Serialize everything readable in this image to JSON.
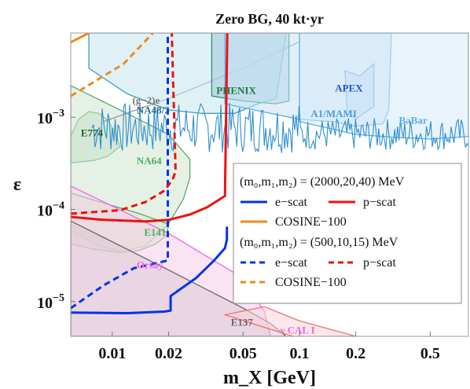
{
  "chart_data": {
    "type": "exclusion-plot",
    "title": "Zero BG, 40 kt·yr",
    "xlabel": "m_X [GeV]",
    "ylabel": "ε",
    "x_scale": "log",
    "y_scale": "log",
    "xlim": [
      0.006,
      0.8
    ],
    "ylim": [
      4.2e-06,
      0.0082
    ],
    "x_ticks": [
      {
        "value": 0.01,
        "label": "0.01"
      },
      {
        "value": 0.02,
        "label": "0.02"
      },
      {
        "value": 0.05,
        "label": "0.05"
      },
      {
        "value": 0.1,
        "label": "0.1"
      },
      {
        "value": 0.2,
        "label": "0.2"
      },
      {
        "value": 0.5,
        "label": "0.5"
      }
    ],
    "y_ticks": [
      {
        "value": 1e-05,
        "base": "10",
        "exp": "−5"
      },
      {
        "value": 0.0001,
        "base": "10",
        "exp": "−4"
      },
      {
        "value": 0.001,
        "base": "10",
        "exp": "−3"
      }
    ],
    "constraints": [
      {
        "name": "E774",
        "color": "#5aa873",
        "fill": "#b9dcc2",
        "points": [
          [
            0.006,
            0.00062
          ],
          [
            0.0066,
            0.00095
          ],
          [
            0.0075,
            0.00115
          ],
          [
            0.0085,
            0.0011
          ],
          [
            0.0095,
            0.00092
          ],
          [
            0.0105,
            0.00065
          ],
          [
            0.011,
            0.00048
          ],
          [
            0.0095,
            0.00038
          ],
          [
            0.008,
            0.00034
          ],
          [
            0.006,
            0.00032
          ]
        ]
      },
      {
        "name": "NA64",
        "color": "#5aa873",
        "fill": "#cfe6cf",
        "points": [
          [
            0.006,
            0.0022
          ],
          [
            0.012,
            0.0011
          ],
          [
            0.02,
            0.00065
          ],
          [
            0.026,
            0.00035
          ],
          [
            0.026,
            0.00022
          ],
          [
            0.024,
            0.00013
          ],
          [
            0.02,
            7e-05
          ],
          [
            0.015,
            4e-05
          ],
          [
            0.011,
            3.5e-05
          ],
          [
            0.008,
            4.2e-05
          ],
          [
            0.006,
            6e-05
          ]
        ]
      },
      {
        "name": "E141",
        "color": "#5aa873",
        "fill": "#dde8c8",
        "points": [
          [
            0.006,
            0.00015
          ],
          [
            0.01,
            0.00011
          ],
          [
            0.014,
            9e-05
          ],
          [
            0.017,
            7.8e-05
          ],
          [
            0.019,
            7.2e-05
          ],
          [
            0.02,
            6.8e-05
          ],
          [
            0.0195,
            5.2e-05
          ],
          [
            0.017,
            4.2e-05
          ],
          [
            0.014,
            3.6e-05
          ],
          [
            0.011,
            3.4e-05
          ],
          [
            0.008,
            3.7e-05
          ],
          [
            0.006,
            4.2e-05
          ]
        ]
      },
      {
        "name": "Orsay",
        "color": "#f066e8",
        "fill": "#f6cdea",
        "points": [
          [
            0.006,
            0.00018
          ],
          [
            0.02,
            5.5e-05
          ],
          [
            0.05,
            1.8e-05
          ],
          [
            0.065,
            7.8e-06
          ],
          [
            0.07,
            4.2e-06
          ],
          [
            0.006,
            4.2e-06
          ]
        ]
      },
      {
        "name": "E137",
        "color": "#666666",
        "fill": "#dcc9d3",
        "points": [
          [
            0.006,
            7.5e-05
          ],
          [
            0.02,
            2.2e-05
          ],
          [
            0.05,
            8.5e-06
          ],
          [
            0.07,
            5.8e-06
          ],
          [
            0.085,
            4.2e-06
          ],
          [
            0.006,
            4.2e-06
          ]
        ]
      },
      {
        "name": "ν CAL I",
        "color": "#f07070",
        "fill": "#f9d6da",
        "points": [
          [
            0.04,
            7.2e-06
          ],
          [
            0.08,
            4.6e-06
          ],
          [
            0.1,
            4e-06
          ],
          [
            0.13,
            4.2e-06
          ],
          [
            0.2,
            4.2e-06
          ],
          [
            0.1,
            6.2e-06
          ],
          [
            0.065,
            8.8e-06
          ]
        ]
      },
      {
        "name": "(g−2)e",
        "color": "#999999",
        "fill": "none",
        "points": [
          [
            0.009,
            0.0009
          ],
          [
            0.02,
            0.0016
          ],
          [
            0.05,
            0.0034
          ],
          [
            0.1,
            0.0066
          ]
        ]
      },
      {
        "name": "NA48/2",
        "color": "#3aa0b8",
        "fill": "#c6e6ee",
        "points": [
          [
            0.0075,
            0.0082
          ],
          [
            0.0075,
            0.0034
          ],
          [
            0.012,
            0.0018
          ],
          [
            0.02,
            0.0012
          ],
          [
            0.03,
            0.0011
          ],
          [
            0.045,
            0.0011
          ],
          [
            0.06,
            0.0014
          ],
          [
            0.075,
            0.0016
          ],
          [
            0.085,
            0.0082
          ]
        ]
      },
      {
        "name": "PHENIX",
        "color": "#2e8b7a",
        "fill": "#9fc9d9",
        "points": [
          [
            0.034,
            0.0082
          ],
          [
            0.034,
            0.0017
          ],
          [
            0.05,
            0.0015
          ],
          [
            0.075,
            0.0014
          ],
          [
            0.088,
            0.0015
          ],
          [
            0.088,
            0.0082
          ]
        ]
      },
      {
        "name": "APEX",
        "color": "#2255cc",
        "fill": "#a8bff0",
        "points": [
          [
            0.175,
            0.0032
          ],
          [
            0.18,
            0.0012
          ],
          [
            0.2,
            0.00095
          ],
          [
            0.22,
            0.0011
          ],
          [
            0.25,
            0.0013
          ],
          [
            0.25,
            0.0038
          ],
          [
            0.21,
            0.0028
          ]
        ]
      },
      {
        "name": "A1/MAMI",
        "color": "#5ab0e6",
        "fill": "#c9e2f6",
        "points": [
          [
            0.04,
            0.0082
          ],
          [
            0.04,
            0.0014
          ],
          [
            0.07,
            0.0011
          ],
          [
            0.1,
            0.00095
          ],
          [
            0.15,
            0.0009
          ],
          [
            0.2,
            0.0008
          ],
          [
            0.28,
            0.00085
          ],
          [
            0.3,
            0.0012
          ],
          [
            0.31,
            0.0082
          ]
        ]
      },
      {
        "name": "BaBar",
        "color": "#5ab0e6",
        "fill": "#d6e9f8",
        "points": [
          [
            0.1,
            0.0082
          ],
          [
            0.1,
            0.0009
          ],
          [
            0.2,
            0.00065
          ],
          [
            0.35,
            0.0006
          ],
          [
            0.5,
            0.00058
          ],
          [
            0.65,
            0.0006
          ],
          [
            0.8,
            0.00062
          ],
          [
            0.8,
            0.0082
          ]
        ]
      },
      {
        "name": "COSINE-100 (upper left)",
        "color": "#f08a1e",
        "fill": "none",
        "points": [
          [
            0.006,
            0.0065
          ],
          [
            0.0075,
            0.0082
          ]
        ]
      }
    ],
    "series": [
      {
        "name": "e−scat",
        "group": "(m₀,m₁,m₂) = (2000,20,40) MeV",
        "color": "#0033ee",
        "style": "solid",
        "points": [
          [
            0.006,
            7.6e-06
          ],
          [
            0.012,
            7.5e-06
          ],
          [
            0.019,
            7.8e-06
          ],
          [
            0.0205,
            8e-06
          ],
          [
            0.0205,
            1.15e-05
          ],
          [
            0.028,
            1.8e-05
          ],
          [
            0.035,
            2.8e-05
          ],
          [
            0.04,
            3.8e-05
          ],
          [
            0.041,
            4.7e-05
          ],
          [
            0.041,
            6.5e-05
          ]
        ]
      },
      {
        "name": "p−scat",
        "group": "(m₀,m₁,m₂) = (2000,20,40) MeV",
        "color": "#ee1111",
        "style": "solid",
        "points": [
          [
            0.006,
            8.3e-05
          ],
          [
            0.009,
            7.7e-05
          ],
          [
            0.015,
            7.4e-05
          ],
          [
            0.02,
            7.7e-05
          ],
          [
            0.026,
            8.8e-05
          ],
          [
            0.032,
            0.000105
          ],
          [
            0.04,
            0.00014
          ],
          [
            0.0412,
            0.0082
          ]
        ]
      },
      {
        "name": "COSINE−100",
        "group": "(m₀,m₁,m₂) = (2000,20,40) MeV",
        "color": "#f08a1e",
        "style": "solid",
        "points": [
          [
            0.006,
            0.0065
          ],
          [
            0.0075,
            0.0082
          ]
        ]
      },
      {
        "name": "e−scat",
        "group": "(m₀,m₁,m₂) = (500,10,15) MeV",
        "color": "#0033ee",
        "style": "dashed",
        "points": [
          [
            0.006,
            8.5e-06
          ],
          [
            0.009,
            1.5e-05
          ],
          [
            0.013,
            2.3e-05
          ],
          [
            0.017,
            2.6e-05
          ],
          [
            0.0198,
            2.8e-05
          ],
          [
            0.0198,
            0.0082
          ]
        ]
      },
      {
        "name": "p−scat",
        "group": "(m₀,m₁,m₂) = (500,10,15) MeV",
        "color": "#ee1111",
        "style": "dashed",
        "points": [
          [
            0.006,
            9e-05
          ],
          [
            0.011,
            9.8e-05
          ],
          [
            0.015,
            0.00012
          ],
          [
            0.019,
            0.00016
          ],
          [
            0.021,
            0.00021
          ],
          [
            0.0218,
            0.00026
          ],
          [
            0.0208,
            0.0082
          ]
        ]
      },
      {
        "name": "COSINE−100",
        "group": "(m₀,m₁,m₂) = (500,10,15) MeV",
        "color": "#f08a1e",
        "style": "dashed",
        "points": [
          [
            0.006,
            0.0017
          ],
          [
            0.0115,
            0.0038
          ],
          [
            0.0165,
            0.0082
          ]
        ]
      }
    ],
    "legend": {
      "placement": "right",
      "groups": [
        {
          "header": "(m₀,m₁,m₂) = (2000,20,40) MeV",
          "entries": [
            {
              "label": "e−scat",
              "color": "#0033ee",
              "style": "solid"
            },
            {
              "label": "p−scat",
              "color": "#ee1111",
              "style": "solid"
            },
            {
              "label": "COSINE−100",
              "color": "#f08a1e",
              "style": "solid"
            }
          ]
        },
        {
          "header": "(m₀,m₁,m₂) = (500,10,15) MeV",
          "entries": [
            {
              "label": "e−scat",
              "color": "#0033ee",
              "style": "dashed"
            },
            {
              "label": "p−scat",
              "color": "#ee1111",
              "style": "dashed"
            },
            {
              "label": "COSINE−100",
              "color": "#f08a1e",
              "style": "dashed"
            }
          ]
        }
      ]
    },
    "annotations": [
      {
        "text": "E774",
        "color": "#1f5f2f",
        "x": 0.0068,
        "y": 0.00062
      },
      {
        "text": "NA48/2",
        "color": "#2a6f95",
        "x": 0.0135,
        "y": 0.0011
      },
      {
        "text": "(g−2)e",
        "color": "#777777",
        "x": 0.0128,
        "y": 0.0014
      },
      {
        "text": "PHENIX",
        "color": "#1e7a3c",
        "x": 0.036,
        "y": 0.0018
      },
      {
        "text": "APEX",
        "color": "#2255cc",
        "x": 0.155,
        "y": 0.0019
      },
      {
        "text": "A1/MAMI",
        "color": "#4aa0d8",
        "x": 0.115,
        "y": 0.001
      },
      {
        "text": "BaBar",
        "color": "#5ab0e6",
        "x": 0.34,
        "y": 0.00085
      },
      {
        "text": "NA64",
        "color": "#4caf60",
        "x": 0.0135,
        "y": 0.00031
      },
      {
        "text": "E141",
        "color": "#4caf60",
        "x": 0.0148,
        "y": 5.2e-05
      },
      {
        "text": "Orsay",
        "color": "#f066e8",
        "x": 0.0135,
        "y": 2.3e-05
      },
      {
        "text": "E137",
        "color": "#666666",
        "x": 0.043,
        "y": 5.5e-06
      },
      {
        "text": "ν CAL I",
        "color": "#f066e8",
        "x": 0.079,
        "y": 4.5e-06
      }
    ],
    "babar_noise": {
      "x_start": 0.0078,
      "x_end": 0.8,
      "base": 0.00082,
      "color": "#2f8fd0"
    },
    "grid": false
  }
}
